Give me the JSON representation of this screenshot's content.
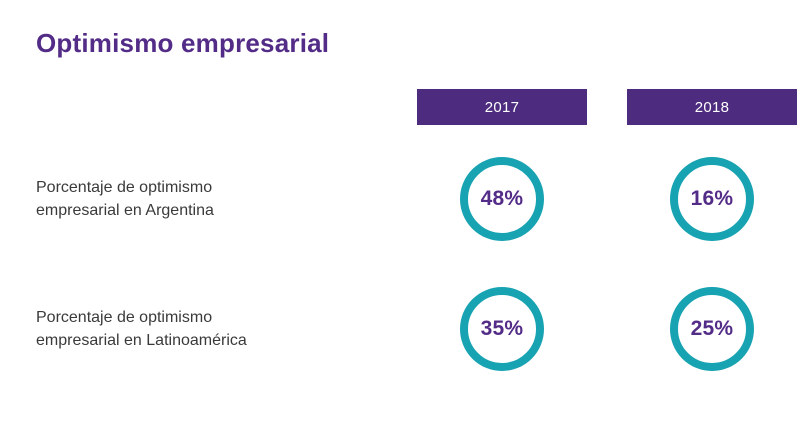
{
  "title": "Optimismo empresarial",
  "colors": {
    "purple_text": "#532c87",
    "header_bg": "#4d2b7e",
    "teal_ring": "#17a3b2",
    "label_text": "#3a3a3a"
  },
  "chart_data": {
    "type": "table",
    "title": "Optimismo empresarial",
    "columns": [
      "2017",
      "2018"
    ],
    "rows": [
      {
        "label": "Porcentaje de optimismo empresarial en Argentina",
        "values": [
          "48%",
          "16%"
        ],
        "values_numeric": [
          48,
          16
        ]
      },
      {
        "label": "Porcentaje de optimismo empresarial en Latinoamérica",
        "values": [
          "35%",
          "25%"
        ],
        "values_numeric": [
          35,
          25
        ]
      }
    ],
    "legend_position": "none",
    "grid": false
  }
}
